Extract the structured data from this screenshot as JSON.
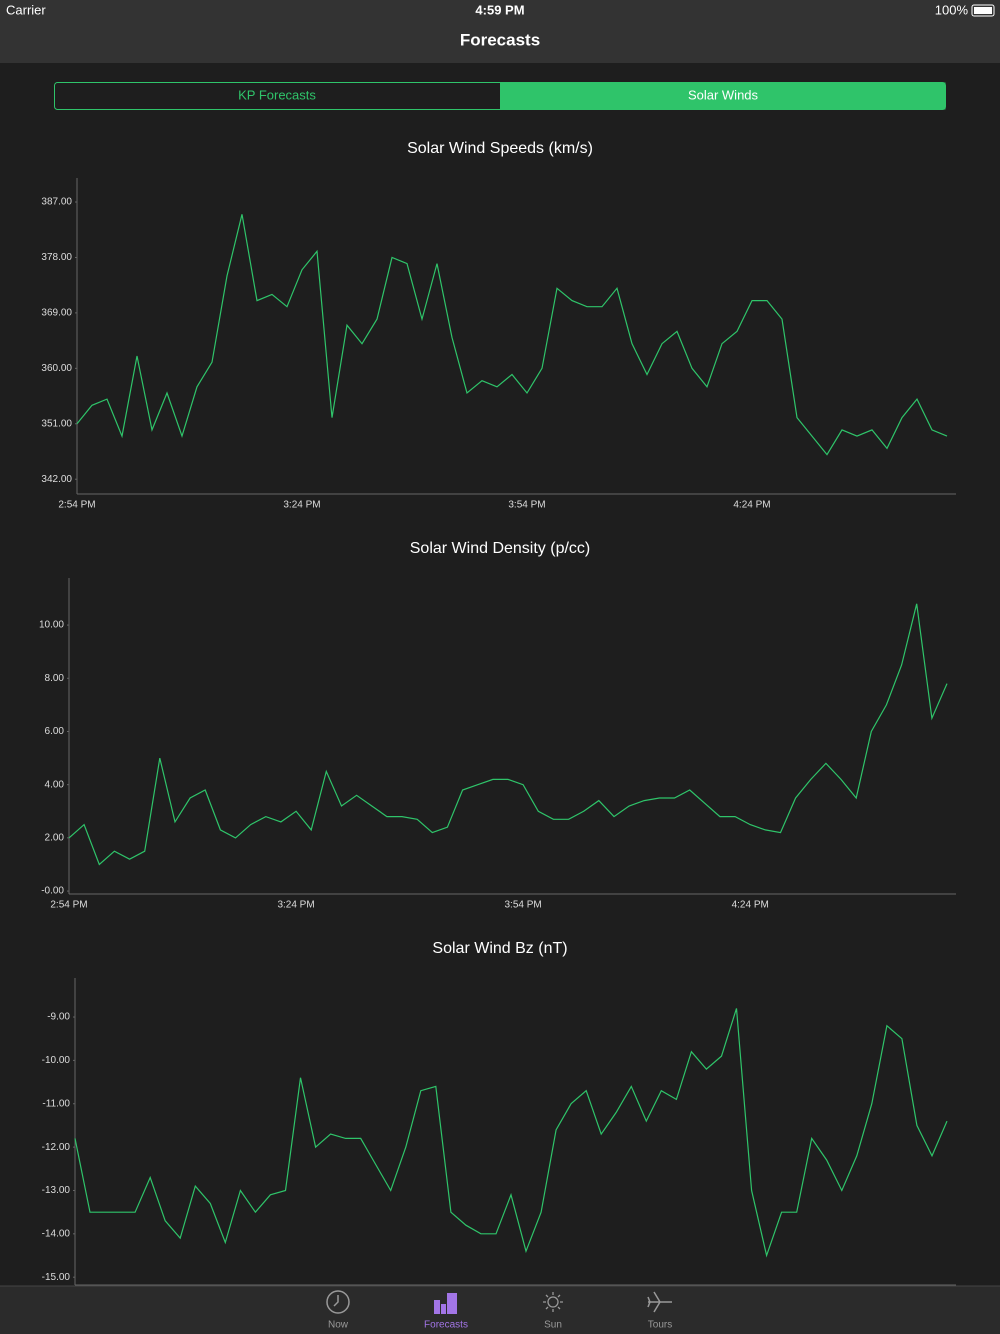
{
  "status_bar": {
    "carrier": "Carrier",
    "time": "4:59 PM",
    "battery": "100%"
  },
  "nav": {
    "title": "Forecasts"
  },
  "segments": [
    "KP Forecasts",
    "Solar Winds"
  ],
  "tabs": [
    "Now",
    "Forecasts",
    "Sun",
    "Tours"
  ],
  "chart_data": [
    {
      "type": "line",
      "title": "Solar Wind Speeds (km/s)",
      "color": "#2fc46a",
      "categories": [
        "2:54 PM",
        null,
        null,
        null,
        null,
        null,
        null,
        null,
        null,
        null,
        null,
        null,
        null,
        null,
        null,
        "3:24 PM",
        null,
        null,
        null,
        null,
        null,
        null,
        null,
        null,
        null,
        null,
        null,
        null,
        null,
        null,
        "3:54 PM",
        null,
        null,
        null,
        null,
        null,
        null,
        null,
        null,
        null,
        null,
        null,
        null,
        null,
        null,
        "4:24 PM",
        null,
        null,
        null,
        null,
        null,
        null,
        null,
        null,
        null,
        null,
        null,
        null,
        null
      ],
      "values": [
        351,
        354,
        355,
        349,
        362,
        350,
        356,
        349,
        357,
        361,
        375,
        385,
        371,
        372,
        370,
        376,
        379,
        352,
        367,
        364,
        368,
        378,
        377,
        368,
        377,
        365,
        356,
        358,
        357,
        359,
        356,
        360,
        373,
        371,
        370,
        370,
        373,
        364,
        359,
        364,
        366,
        360,
        357,
        364,
        366,
        371,
        371,
        368,
        352,
        349,
        346,
        350,
        349,
        350,
        347,
        352,
        355,
        350,
        349
      ],
      "ylim": [
        339.6,
        390.9
      ],
      "yticks": [
        {
          "value": 342,
          "label": "342.00"
        },
        {
          "value": 351,
          "label": "351.00"
        },
        {
          "value": 360,
          "label": "360.00"
        },
        {
          "value": 369,
          "label": "369.00"
        },
        {
          "value": 378,
          "label": "378.00"
        },
        {
          "value": 387,
          "label": "387.00"
        }
      ]
    },
    {
      "type": "line",
      "title": "Solar Wind Density (p/cc)",
      "color": "#2fc46a",
      "categories": [
        "2:54 PM",
        null,
        null,
        null,
        null,
        null,
        null,
        null,
        null,
        null,
        null,
        null,
        null,
        null,
        null,
        "3:24 PM",
        null,
        null,
        null,
        null,
        null,
        null,
        null,
        null,
        null,
        null,
        null,
        null,
        null,
        null,
        "3:54 PM",
        null,
        null,
        null,
        null,
        null,
        null,
        null,
        null,
        null,
        null,
        null,
        null,
        null,
        null,
        "4:24 PM",
        null,
        null,
        null,
        null,
        null,
        null,
        null,
        null,
        null,
        null,
        null,
        null,
        null
      ],
      "values": [
        2.0,
        2.5,
        1.0,
        1.5,
        1.2,
        1.5,
        5.0,
        2.6,
        3.5,
        3.8,
        2.3,
        2.0,
        2.5,
        2.8,
        2.6,
        3.0,
        2.3,
        4.5,
        3.2,
        3.6,
        3.2,
        2.8,
        2.8,
        2.7,
        2.2,
        2.4,
        3.8,
        4.0,
        4.2,
        4.2,
        4.0,
        3.0,
        2.7,
        2.7,
        3.0,
        3.4,
        2.8,
        3.2,
        3.4,
        3.5,
        3.5,
        3.8,
        3.3,
        2.8,
        2.8,
        2.5,
        2.3,
        2.2,
        3.5,
        4.2,
        4.8,
        4.2,
        3.5,
        6.0,
        7.0,
        8.5,
        10.8,
        6.5,
        7.8
      ],
      "ylim": [
        -0.11,
        11.77
      ],
      "yticks": [
        {
          "value": 0,
          "label": "-0.00"
        },
        {
          "value": 2,
          "label": "2.00"
        },
        {
          "value": 4,
          "label": "4.00"
        },
        {
          "value": 6,
          "label": "6.00"
        },
        {
          "value": 8,
          "label": "8.00"
        },
        {
          "value": 10,
          "label": "10.00"
        }
      ]
    },
    {
      "type": "line",
      "title": "Solar Wind Bz (nT)",
      "color": "#2fc46a",
      "categories": [
        null,
        null,
        null,
        null,
        null,
        null,
        null,
        null,
        null,
        null,
        null,
        null,
        null,
        null,
        null,
        null,
        null,
        null,
        null,
        null,
        null,
        null,
        null,
        null,
        null,
        null,
        null,
        null,
        null,
        null,
        null,
        null,
        null,
        null,
        null,
        null,
        null,
        null,
        null,
        null,
        null,
        null,
        null,
        null,
        null,
        null,
        null,
        null,
        null,
        null,
        null,
        null,
        null,
        null,
        null,
        null,
        null,
        null,
        null
      ],
      "values": [
        -11.8,
        -13.5,
        -13.5,
        -13.5,
        -13.5,
        -12.7,
        -13.7,
        -14.1,
        -12.9,
        -13.3,
        -14.2,
        -13.0,
        -13.5,
        -13.1,
        -13.0,
        -10.4,
        -12.0,
        -11.7,
        -11.8,
        -11.8,
        -12.4,
        -13.0,
        -12.0,
        -10.7,
        -10.6,
        -13.5,
        -13.8,
        -14.0,
        -14.0,
        -13.1,
        -14.4,
        -13.5,
        -11.6,
        -11.0,
        -10.7,
        -11.7,
        -11.2,
        -10.6,
        -11.4,
        -10.7,
        -10.9,
        -9.8,
        -10.2,
        -9.9,
        -8.8,
        -13.0,
        -14.5,
        -13.5,
        -13.5,
        -11.8,
        -12.3,
        -13.0,
        -12.2,
        -11.0,
        -9.2,
        -9.5,
        -11.5,
        -12.2,
        -11.4
      ],
      "ylim": [
        -15.18,
        -8.1
      ],
      "yticks": [
        {
          "value": -15,
          "label": "-15.00"
        },
        {
          "value": -14,
          "label": "-14.00"
        },
        {
          "value": -13,
          "label": "-13.00"
        },
        {
          "value": -12,
          "label": "-12.00"
        },
        {
          "value": -11,
          "label": "-11.00"
        },
        {
          "value": -10,
          "label": "-10.00"
        },
        {
          "value": -9,
          "label": "-9.00"
        }
      ]
    }
  ]
}
